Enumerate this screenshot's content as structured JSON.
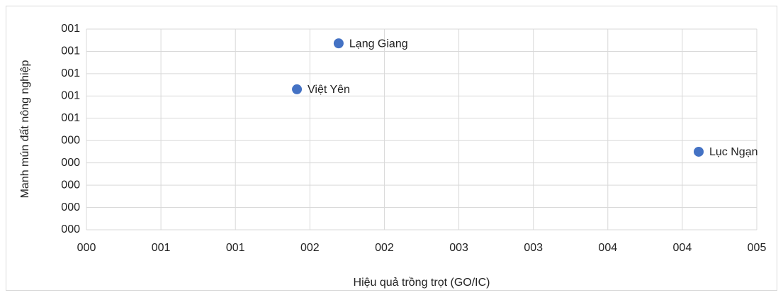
{
  "chart_data": {
    "type": "scatter",
    "x_label": "Hiệu quả trồng trọt (GO/IC)",
    "y_label": "Manh mún đất nông nghiệp",
    "x": [
      1.693,
      1.413,
      4.11
    ],
    "labels": [
      "Lạng Giang",
      "Việt Yên",
      "Lục Ngạn"
    ],
    "series": [
      {
        "color": "#4472c4",
        "values": [
          0.836,
          0.63,
          0.35
        ]
      }
    ],
    "xlim": [
      0,
      4.5
    ],
    "xticks": [
      {
        "value": 0,
        "label": "000"
      },
      {
        "value": 0.5,
        "label": "001"
      },
      {
        "value": 1,
        "label": "001"
      },
      {
        "value": 1.5,
        "label": "002"
      },
      {
        "value": 2,
        "label": "002"
      },
      {
        "value": 2.5,
        "label": "003"
      },
      {
        "value": 3,
        "label": "003"
      },
      {
        "value": 3.5,
        "label": "004"
      },
      {
        "value": 4,
        "label": "004"
      },
      {
        "value": 4.5,
        "label": "005"
      }
    ],
    "ylim": [
      0,
      0.9
    ],
    "yticks": [
      {
        "value": 0,
        "label": "000"
      },
      {
        "value": 0.1,
        "label": "000"
      },
      {
        "value": 0.2,
        "label": "000"
      },
      {
        "value": 0.3,
        "label": "000"
      },
      {
        "value": 0.4,
        "label": "000"
      },
      {
        "value": 0.5,
        "label": "001"
      },
      {
        "value": 0.6,
        "label": "001"
      },
      {
        "value": 0.7,
        "label": "001"
      },
      {
        "value": 0.8,
        "label": "001"
      },
      {
        "value": 0.9,
        "label": "001"
      }
    ],
    "grid": true
  }
}
